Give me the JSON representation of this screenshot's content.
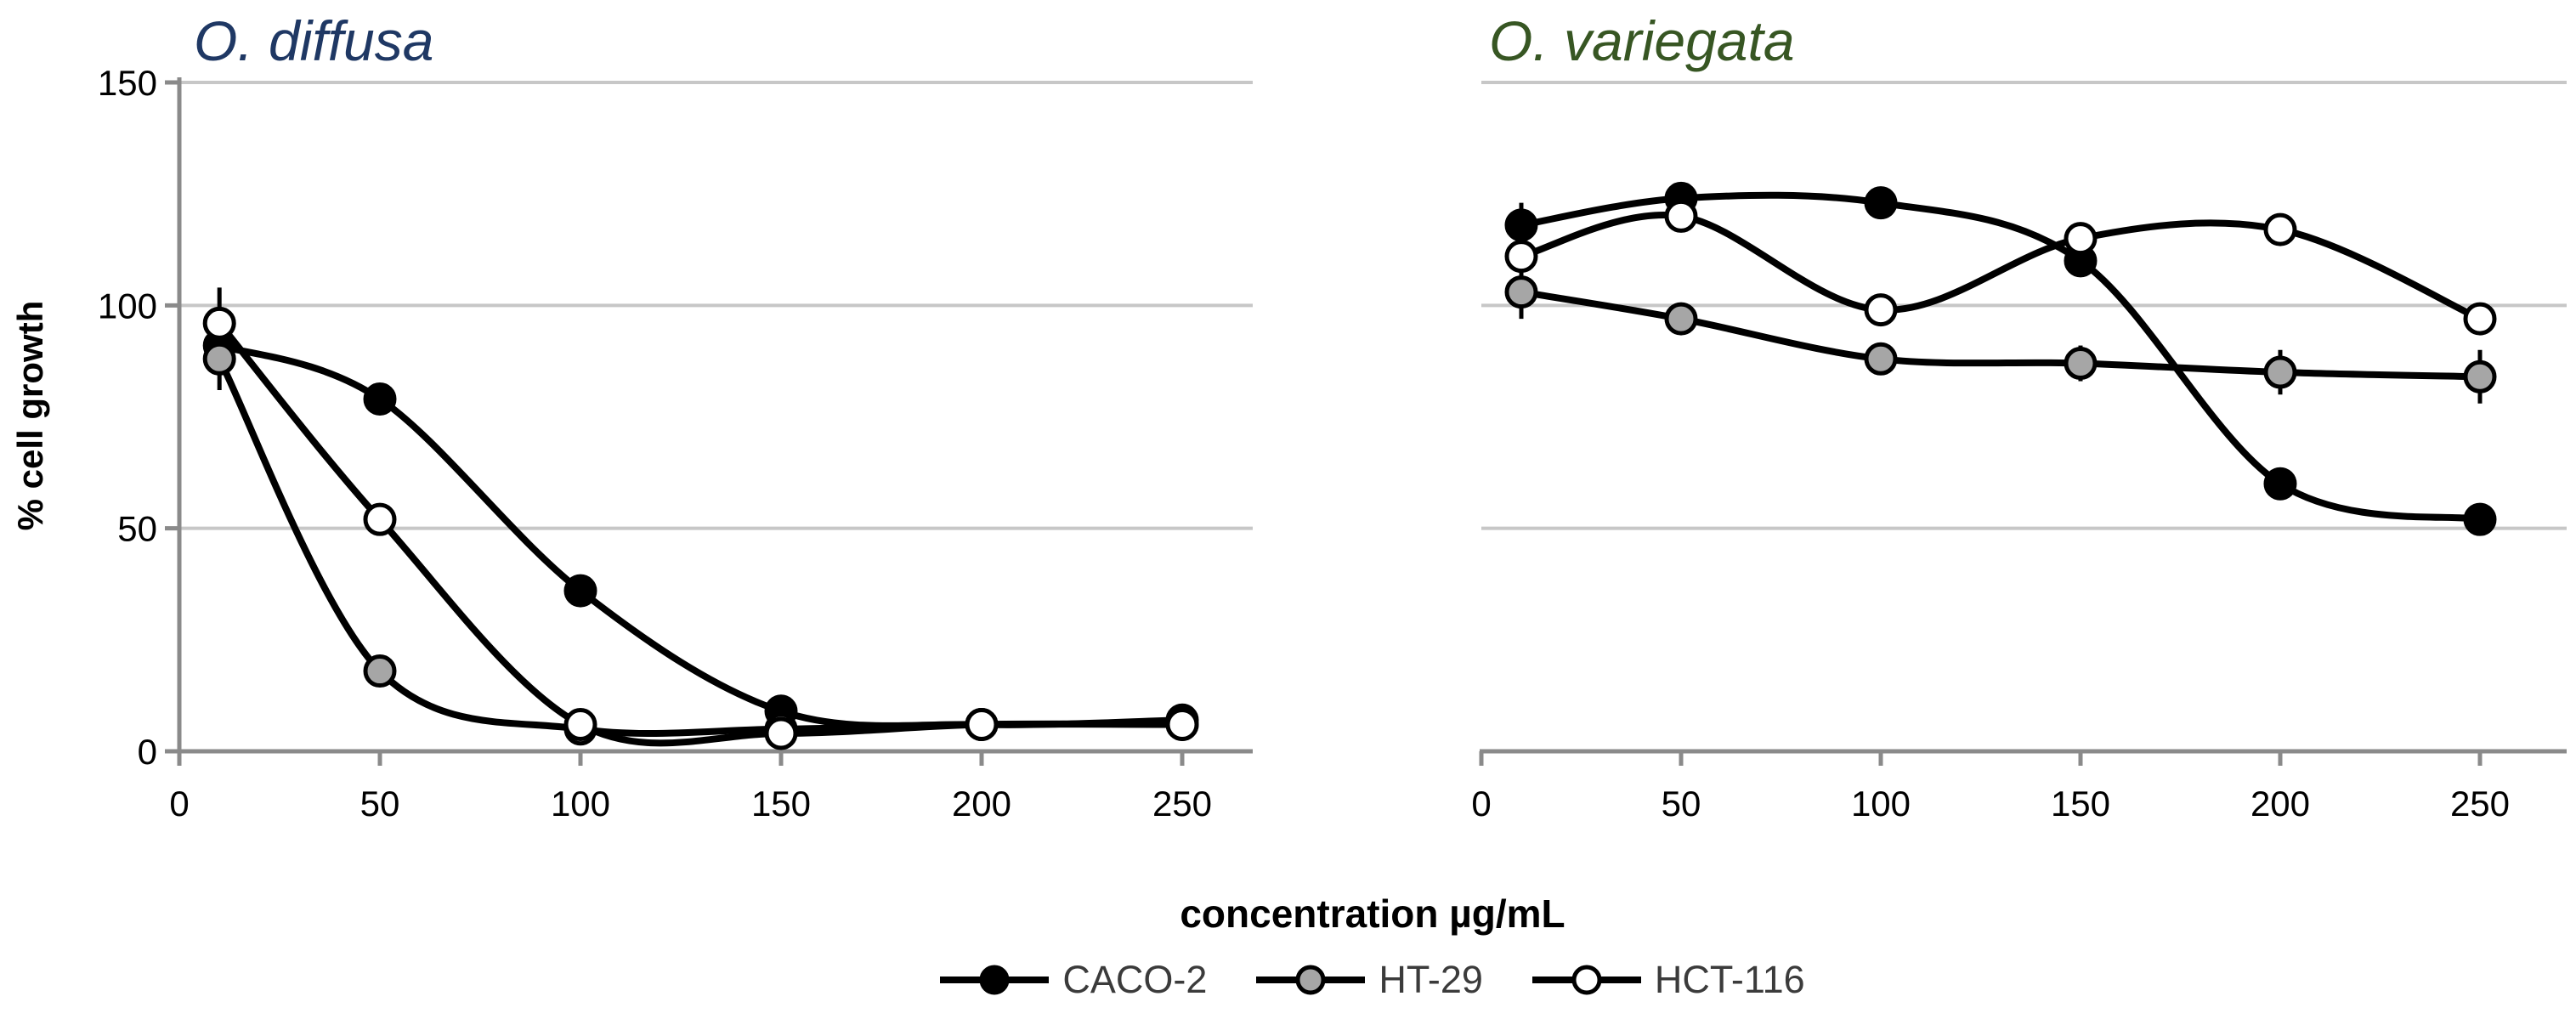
{
  "axes": {
    "y_label": "% cell growth",
    "x_label": "concentration µg/mL",
    "y_ticks": [
      0,
      50,
      100,
      150
    ],
    "x_ticks": [
      0,
      50,
      100,
      150,
      200,
      250
    ],
    "y_range": [
      0,
      150
    ],
    "x_range": [
      0,
      250
    ],
    "grid": "horizontal-only",
    "legend_position": "bottom"
  },
  "chart_data": [
    {
      "type": "line",
      "title": "O. diffusa",
      "title_color": "#1F3864",
      "x": [
        10,
        50,
        100,
        150,
        200,
        250
      ],
      "xlabel": "concentration µg/mL",
      "ylabel": "% cell growth",
      "ylim": [
        0,
        150
      ],
      "series": [
        {
          "name": "CACO-2",
          "marker_fill": "#000000",
          "values": [
            91,
            79,
            36,
            9,
            6,
            7
          ],
          "errors": [
            0,
            3,
            3,
            2,
            0,
            0
          ]
        },
        {
          "name": "HT-29",
          "marker_fill": "#A6A6A6",
          "values": [
            88,
            18,
            5,
            5,
            6,
            6
          ],
          "errors": [
            7,
            0,
            0,
            0,
            0,
            0
          ]
        },
        {
          "name": "HCT-116",
          "marker_fill": "#FFFFFF",
          "values": [
            96,
            52,
            6,
            4,
            6,
            6
          ],
          "errors": [
            8,
            0,
            0,
            0,
            0,
            0
          ]
        }
      ]
    },
    {
      "type": "line",
      "title": "O. variegata",
      "title_color": "#375623",
      "x": [
        10,
        50,
        100,
        150,
        200,
        250
      ],
      "xlabel": "concentration µg/mL",
      "ylabel": "% cell growth",
      "ylim": [
        0,
        150
      ],
      "series": [
        {
          "name": "CACO-2",
          "marker_fill": "#000000",
          "values": [
            118,
            124,
            123,
            110,
            60,
            52
          ],
          "errors": [
            5,
            0,
            0,
            3,
            0,
            0
          ]
        },
        {
          "name": "HT-29",
          "marker_fill": "#A6A6A6",
          "values": [
            103,
            97,
            88,
            87,
            85,
            84
          ],
          "errors": [
            6,
            3,
            3,
            4,
            5,
            6
          ]
        },
        {
          "name": "HCT-116",
          "marker_fill": "#FFFFFF",
          "values": [
            111,
            120,
            99,
            115,
            117,
            97
          ],
          "errors": [
            0,
            0,
            0,
            0,
            0,
            0
          ]
        }
      ]
    }
  ],
  "legend": {
    "items": [
      {
        "label": "CACO-2",
        "marker_fill": "#000000"
      },
      {
        "label": "HT-29",
        "marker_fill": "#A6A6A6"
      },
      {
        "label": "HCT-116",
        "marker_fill": "#FFFFFF"
      }
    ]
  },
  "style_colors": {
    "line": "#000000",
    "gridline": "#C7C7C7",
    "axis": "#8A8A8A",
    "tick_label": "#000000"
  }
}
